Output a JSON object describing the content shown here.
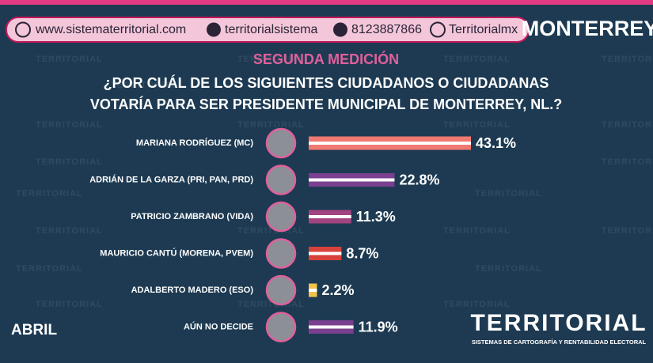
{
  "header": {
    "website": "www.sistematerritorial.com",
    "facebook": "territorialsistema",
    "whatsapp": "8123887866",
    "x": "Territorialmx",
    "city": "MONTERREY"
  },
  "watermark": "TERRITORIAL",
  "footer": {
    "month": "ABRIL",
    "brand": "TERRITORIAL",
    "tagline": "SISTEMAS DE CARTOGRAFÍA Y RENTABILIDAD ELECTORAL"
  },
  "chart_data": {
    "type": "bar",
    "orientation": "horizontal",
    "subtitle": "SEGUNDA MEDICIÓN",
    "title_lines": [
      "¿POR CUÁL DE LOS SIGUIENTES CIUDADANOS O CIUDADANAS",
      "VOTARÍA PARA SER PRESIDENTE MUNICIPAL DE MONTERREY, NL.?"
    ],
    "categories": [
      "MARIANA RODRÍGUEZ (MC)",
      "ADRIÁN DE LA GARZA (PRI, PAN, PRD)",
      "PATRICIO ZAMBRANO (VIDA)",
      "MAURICIO CANTÚ (MORENA, PVEM)",
      "ADALBERTO MADERO (ESO)",
      "AÚN NO DECIDE"
    ],
    "values": [
      43.1,
      22.8,
      11.3,
      8.7,
      2.2,
      11.9
    ],
    "value_labels": [
      "43.1%",
      "22.8%",
      "11.3%",
      "8.7%",
      "2.2%",
      "11.9%"
    ],
    "colors": [
      "#f07a72",
      "#7a3f8e",
      "#a2447f",
      "#d8413b",
      "#f4c24a",
      "#7a3f8e"
    ]
  }
}
